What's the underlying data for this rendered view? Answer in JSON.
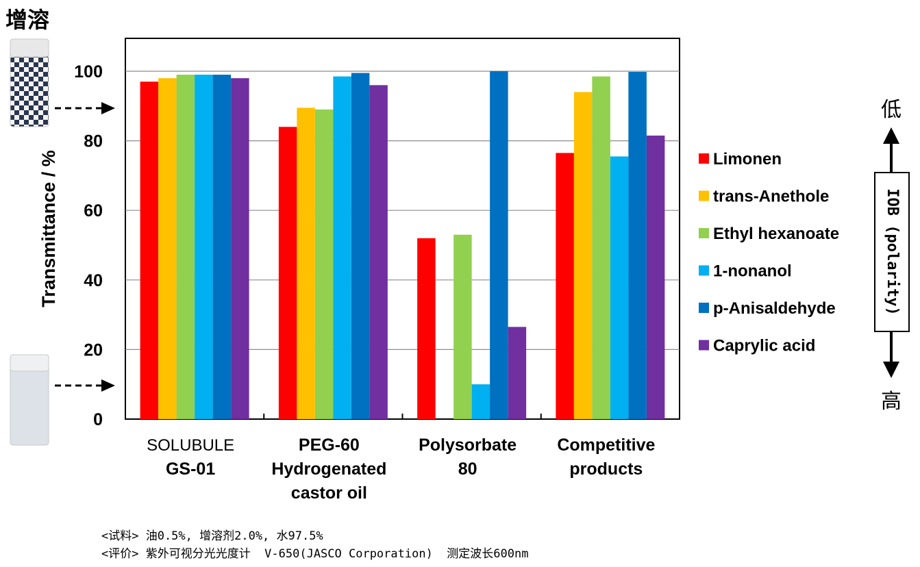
{
  "solubilize_label": "增溶",
  "chart_data": {
    "type": "bar",
    "ylabel": "Transmittance / %",
    "ylim": [
      0,
      110
    ],
    "yticks": [
      0,
      20,
      40,
      60,
      80,
      100
    ],
    "grid": true,
    "legend_position": "right",
    "categories": [
      [
        "SOLUBULE",
        "GS-01"
      ],
      [
        "PEG-60",
        "Hydrogenated",
        "castor oil"
      ],
      [
        "Polysorbate",
        "80"
      ],
      [
        "Competitive",
        "products"
      ]
    ],
    "series": [
      {
        "name": "Limonen",
        "color": "#ff0000",
        "values": [
          97,
          84,
          52,
          76.5
        ]
      },
      {
        "name": "trans-Anethole",
        "color": "#ffc000",
        "values": [
          98,
          89.5,
          null,
          94
        ]
      },
      {
        "name": "Ethyl hexanoate",
        "color": "#92d050",
        "values": [
          99,
          89,
          53,
          98.5
        ]
      },
      {
        "name": "1-nonanol",
        "color": "#00b0f0",
        "values": [
          99,
          98.5,
          10,
          75.5
        ]
      },
      {
        "name": "p-Anisaldehyde",
        "color": "#0070c0",
        "values": [
          99,
          99.5,
          100,
          99.8
        ]
      },
      {
        "name": "Caprylic acid",
        "color": "#7030a0",
        "values": [
          98,
          96,
          26.5,
          81.5
        ]
      }
    ]
  },
  "iob": {
    "top_label": "低",
    "bottom_label": "高",
    "box_label": "IOB (polarity)"
  },
  "notes": [
    "<试料> 油0.5%, 增溶剂2.0%, 水97.5%",
    "<评价> 紫外可视分光光度计  V-650(JASCO Corporation)  测定波长600nm"
  ]
}
